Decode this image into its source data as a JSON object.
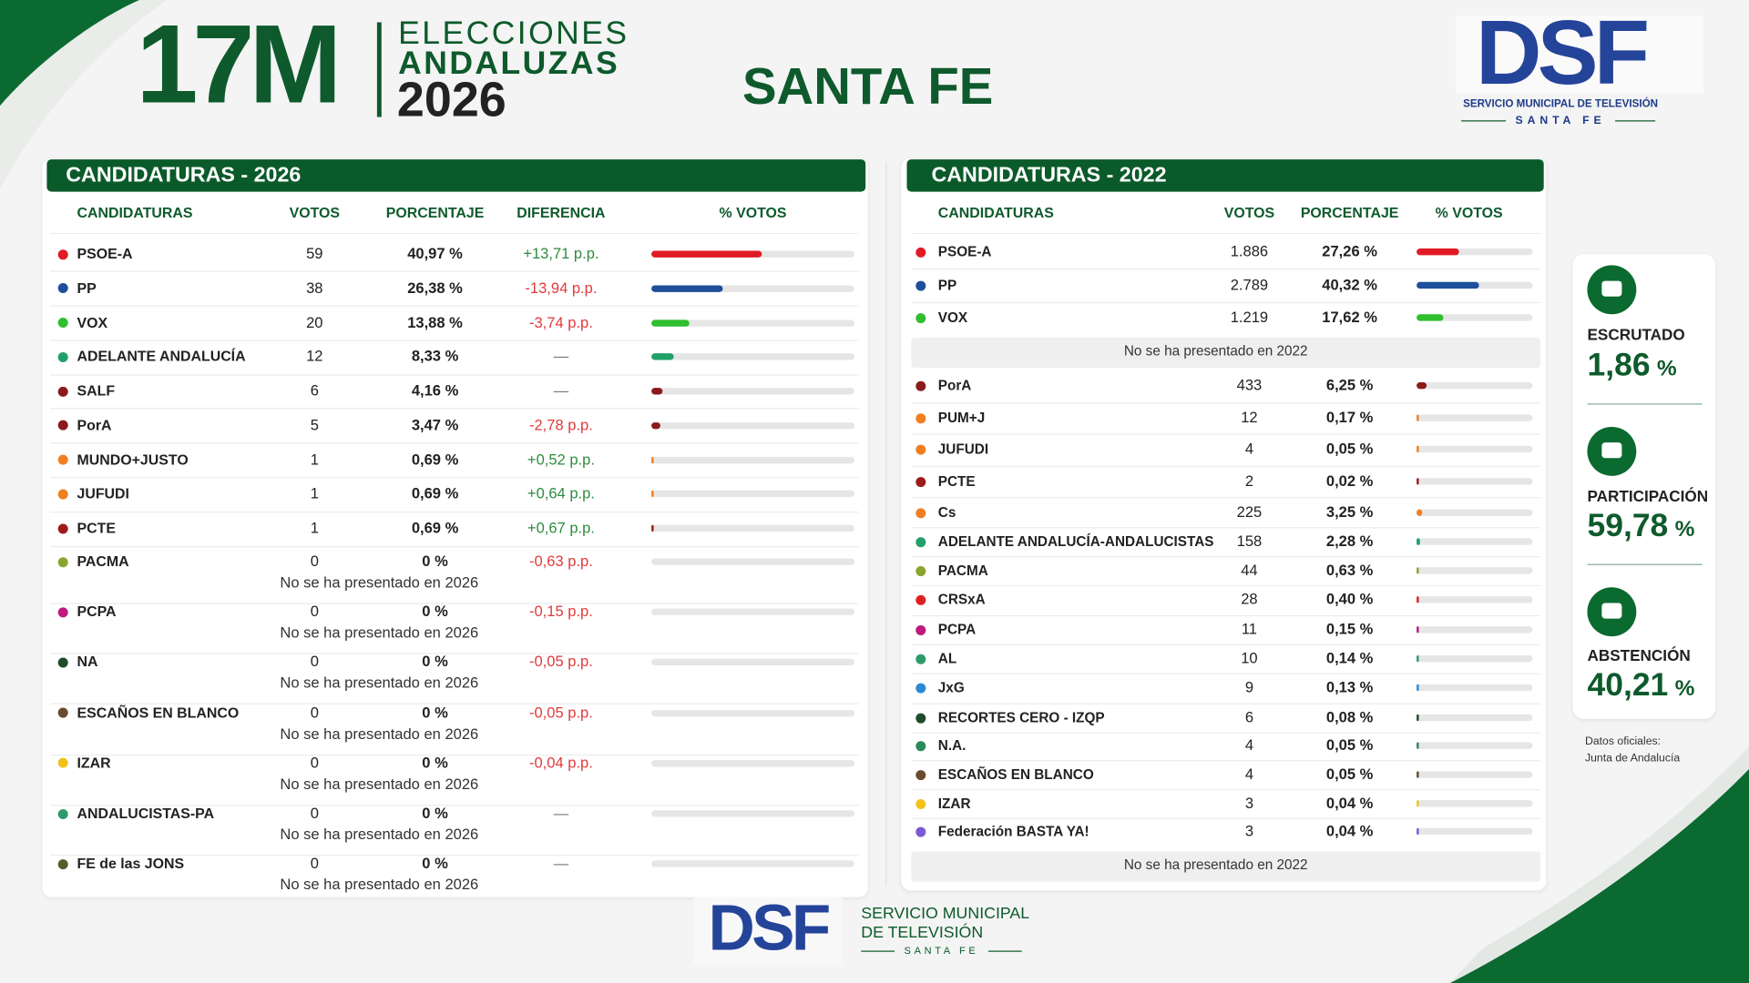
{
  "header": {
    "logo_number": "17M",
    "event_lines": [
      "ELECCIONES",
      "ANDALUZAS",
      "2026"
    ],
    "place": "SANTA FE"
  },
  "brand_top": {
    "mark": "DSF",
    "line1": "SERVICIO MUNICIPAL DE TELEVISIÓN",
    "line2": "SANTA FE"
  },
  "table_2026": {
    "title": "CANDIDATURAS - 2026",
    "columns": [
      "CANDIDATURAS",
      "VOTOS",
      "PORCENTAJE",
      "DIFERENCIA",
      "% VOTOS"
    ],
    "rows": [
      {
        "party": "PSOE-A",
        "color": "#e01b24",
        "votes": "59",
        "pct": 40.97,
        "pct_label": "40,97 %",
        "diff": "+13,71 p.p."
      },
      {
        "party": "PP",
        "color": "#1d4f9a",
        "votes": "38",
        "pct": 26.38,
        "pct_label": "26,38 %",
        "diff": "-13,94 p.p."
      },
      {
        "party": "VOX",
        "color": "#2fbf2f",
        "votes": "20",
        "pct": 13.88,
        "pct_label": "13,88 %",
        "diff": "-3,74 p.p."
      },
      {
        "party": "ADELANTE ANDALUCÍA",
        "color": "#21a06a",
        "votes": "12",
        "pct": 8.33,
        "pct_label": "8,33 %",
        "diff": "—"
      },
      {
        "party": "SALF",
        "color": "#8b1a1a",
        "votes": "6",
        "pct": 4.16,
        "pct_label": "4,16 %",
        "diff": "—"
      },
      {
        "party": "PorA",
        "color": "#8b1a1a",
        "votes": "5",
        "pct": 3.47,
        "pct_label": "3,47 %",
        "diff": "-2,78 p.p."
      },
      {
        "party": "MUNDO+JUSTO",
        "color": "#f07f21",
        "votes": "1",
        "pct": 0.69,
        "pct_label": "0,69 %",
        "diff": "+0,52 p.p."
      },
      {
        "party": "JUFUDI",
        "color": "#f07f21",
        "votes": "1",
        "pct": 0.69,
        "pct_label": "0,69 %",
        "diff": "+0,64 p.p."
      },
      {
        "party": "PCTE",
        "color": "#9b1b1b",
        "votes": "1",
        "pct": 0.69,
        "pct_label": "0,69 %",
        "diff": "+0,67 p.p."
      },
      {
        "party": "PACMA",
        "color": "#8aa52e",
        "votes": "0",
        "pct": 0,
        "pct_label": "0 %",
        "diff": "-0,63 p.p.",
        "note": "No se ha presentado en 2026"
      },
      {
        "party": "PCPA",
        "color": "#c0197f",
        "votes": "0",
        "pct": 0,
        "pct_label": "0 %",
        "diff": "-0,15 p.p.",
        "note": "No se ha presentado en 2026"
      },
      {
        "party": "NA",
        "color": "#1d4d2a",
        "votes": "0",
        "pct": 0,
        "pct_label": "0 %",
        "diff": "-0,05 p.p.",
        "note": "No se ha presentado en 2026"
      },
      {
        "party": "ESCAÑOS EN BLANCO",
        "color": "#6b4a2e",
        "votes": "0",
        "pct": 0,
        "pct_label": "0 %",
        "diff": "-0,05 p.p.",
        "note": "No se ha presentado en 2026"
      },
      {
        "party": "IZAR",
        "color": "#f2c21b",
        "votes": "0",
        "pct": 0,
        "pct_label": "0 %",
        "diff": "-0,04 p.p.",
        "note": "No se ha presentado en 2026"
      },
      {
        "party": "ANDALUCISTAS-PA",
        "color": "#2e9a6a",
        "votes": "0",
        "pct": 0,
        "pct_label": "0 %",
        "diff": "—",
        "note": "No se ha presentado en 2026"
      },
      {
        "party": "FE de las JONS",
        "color": "#5a5a2a",
        "votes": "0",
        "pct": 0,
        "pct_label": "0 %",
        "diff": "—",
        "note": "No se ha presentado en 2026"
      }
    ]
  },
  "table_2022": {
    "title": "CANDIDATURAS - 2022",
    "columns": [
      "CANDIDATURAS",
      "VOTOS",
      "PORCENTAJE",
      "% VOTOS"
    ],
    "rows": [
      {
        "party": "PSOE-A",
        "color": "#e01b24",
        "votes": "1.886",
        "pct": 27.26,
        "pct_label": "27,26 %"
      },
      {
        "party": "PP",
        "color": "#1d4f9a",
        "votes": "2.789",
        "pct": 40.32,
        "pct_label": "40,32 %"
      },
      {
        "party": "VOX",
        "color": "#2fbf2f",
        "votes": "1.219",
        "pct": 17.62,
        "pct_label": "17,62 %"
      },
      {
        "note": "No se ha presentado en 2022"
      },
      {
        "party": "PorA",
        "color": "#8b1a1a",
        "votes": "433",
        "pct": 6.25,
        "pct_label": "6,25 %"
      },
      {
        "party": "PUM+J",
        "color": "#f07f21",
        "votes": "12",
        "pct": 0.17,
        "pct_label": "0,17 %"
      },
      {
        "party": "JUFUDI",
        "color": "#f07f21",
        "votes": "4",
        "pct": 0.05,
        "pct_label": "0,05 %"
      },
      {
        "party": "PCTE",
        "color": "#9b1b1b",
        "votes": "2",
        "pct": 0.02,
        "pct_label": "0,02 %"
      },
      {
        "party": "Cs",
        "color": "#f07f21",
        "votes": "225",
        "pct": 3.25,
        "pct_label": "3,25 %"
      },
      {
        "party": "ADELANTE ANDALUCÍA-ANDALUCISTAS",
        "color": "#21a06a",
        "votes": "158",
        "pct": 2.28,
        "pct_label": "2,28 %"
      },
      {
        "party": "PACMA",
        "color": "#8aa52e",
        "votes": "44",
        "pct": 0.63,
        "pct_label": "0,63 %"
      },
      {
        "party": "CRSxA",
        "color": "#e02020",
        "votes": "28",
        "pct": 0.4,
        "pct_label": "0,40 %"
      },
      {
        "party": "PCPA",
        "color": "#c0197f",
        "votes": "11",
        "pct": 0.15,
        "pct_label": "0,15 %"
      },
      {
        "party": "AL",
        "color": "#2e9a6a",
        "votes": "10",
        "pct": 0.14,
        "pct_label": "0,14 %"
      },
      {
        "party": "JxG",
        "color": "#2a8ad6",
        "votes": "9",
        "pct": 0.13,
        "pct_label": "0,13 %"
      },
      {
        "party": "RECORTES CERO - IZQP",
        "color": "#1d4d2a",
        "votes": "6",
        "pct": 0.08,
        "pct_label": "0,08 %"
      },
      {
        "party": "N.A.",
        "color": "#2a8a5a",
        "votes": "4",
        "pct": 0.05,
        "pct_label": "0,05 %"
      },
      {
        "party": "ESCAÑOS EN BLANCO",
        "color": "#6b4a2e",
        "votes": "4",
        "pct": 0.05,
        "pct_label": "0,05 %"
      },
      {
        "party": "IZAR",
        "color": "#f2c21b",
        "votes": "3",
        "pct": 0.04,
        "pct_label": "0,04 %"
      },
      {
        "party": "Federación BASTA YA!",
        "color": "#7a5ad6",
        "votes": "3",
        "pct": 0.04,
        "pct_label": "0,04 %"
      },
      {
        "note": "No se ha presentado en 2022"
      }
    ]
  },
  "stats": [
    {
      "label": "ESCRUTADO",
      "value": "1,86",
      "unit": "%"
    },
    {
      "label": "PARTICIPACIÓN",
      "value": "59,78",
      "unit": "%"
    },
    {
      "label": "ABSTENCIÓN",
      "value": "40,21",
      "unit": "%"
    }
  ],
  "source": [
    "Datos oficiales:",
    "Junta de Andalucía"
  ],
  "brand_bottom": {
    "mark": "DSF",
    "lines": [
      "SERVICIO MUNICIPAL",
      "DE TELEVISIÓN"
    ],
    "tagline": "SANTA FE"
  }
}
